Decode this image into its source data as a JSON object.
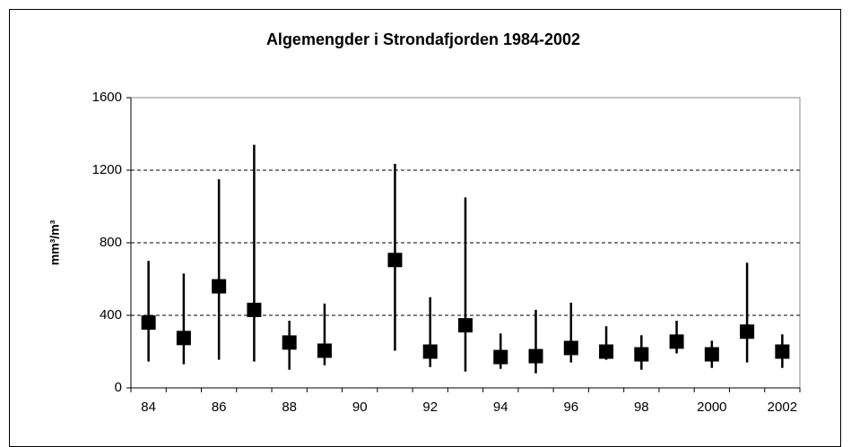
{
  "chart_data": {
    "type": "high-low-mean",
    "title": "Algemengder i Strondafjorden 1984-2002",
    "y_label": "mm³/m³",
    "categories": [
      "84",
      null,
      "86",
      null,
      "88",
      null,
      "90",
      null,
      "92",
      null,
      "94",
      null,
      "96",
      null,
      "98",
      null,
      "2000",
      null,
      "2002"
    ],
    "values": [
      360,
      275,
      560,
      430,
      250,
      205,
      null,
      705,
      200,
      345,
      170,
      175,
      220,
      200,
      185,
      255,
      185,
      310,
      200
    ],
    "high": [
      700,
      630,
      1150,
      1340,
      370,
      465,
      null,
      1235,
      500,
      1050,
      300,
      430,
      470,
      340,
      290,
      370,
      260,
      690,
      295
    ],
    "low": [
      145,
      130,
      155,
      145,
      100,
      125,
      null,
      205,
      115,
      90,
      105,
      80,
      140,
      155,
      100,
      190,
      110,
      140,
      110
    ],
    "color": "#000000",
    "ylim": [
      0,
      1600
    ],
    "yticks": [
      0,
      400,
      800,
      1200,
      1600
    ],
    "grid": true
  }
}
